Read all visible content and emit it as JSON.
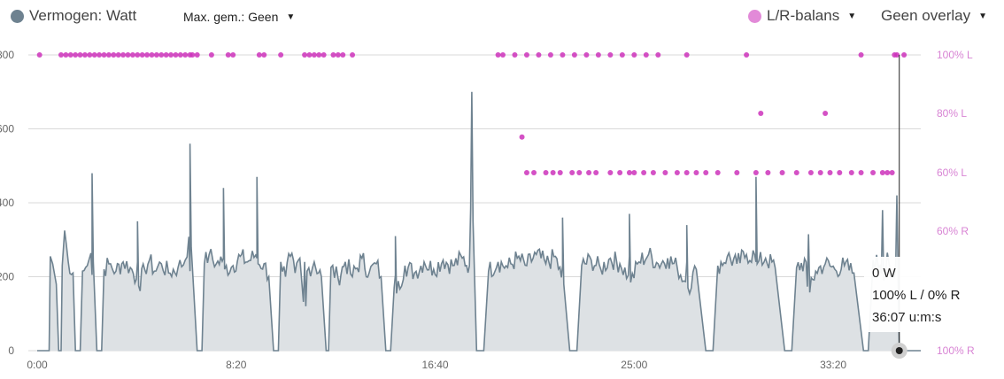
{
  "controls": {
    "power_legend": "Vermogen: Watt",
    "max_avg": "Max. gem.: Geen",
    "lr_legend": "L/R-balans",
    "overlay": "Geen overlay"
  },
  "colors": {
    "power_line": "#6e8290",
    "power_fill": "#dde1e4",
    "balance": "#cc33bb",
    "balance_label": "#d884d4",
    "grid": "#d9d9d9"
  },
  "tooltip": {
    "power": "0 W",
    "balance": "100% L  /  0% R",
    "time": "36:07 u:m:s"
  },
  "chart_data": {
    "type": "line",
    "x_unit": "minutes",
    "xlim": [
      0,
      37
    ],
    "x_ticks": [
      "0:00",
      "8:20",
      "16:40",
      "25:00",
      "33:20"
    ],
    "y_left_ticks": [
      "0",
      "200",
      "400",
      "600",
      "800"
    ],
    "ylim_left": [
      0,
      800
    ],
    "y_right_ticks": [
      "100% R",
      "60% R",
      "60% L",
      "80% L",
      "100% L"
    ],
    "grid": true,
    "series": [
      {
        "name": "Vermogen: Watt",
        "axis": "left",
        "points": [
          [
            0,
            0
          ],
          [
            0.5,
            0
          ],
          [
            0.55,
            255
          ],
          [
            0.65,
            235
          ],
          [
            0.8,
            180
          ],
          [
            0.9,
            0
          ],
          [
            1.0,
            0
          ],
          [
            1.05,
            230
          ],
          [
            1.15,
            325
          ],
          [
            1.3,
            240
          ],
          [
            1.5,
            210
          ],
          [
            1.6,
            0
          ],
          [
            1.8,
            0
          ],
          [
            1.9,
            215
          ],
          [
            2.1,
            230
          ],
          [
            2.3,
            205
          ],
          [
            2.5,
            0
          ],
          [
            2.7,
            0
          ],
          [
            2.8,
            220
          ],
          [
            3.0,
            235
          ],
          [
            3.3,
            215
          ],
          [
            3.6,
            240
          ],
          [
            3.9,
            225
          ],
          [
            4.2,
            240
          ],
          [
            4.5,
            220
          ],
          [
            4.7,
            245
          ],
          [
            4.9,
            215
          ],
          [
            5.2,
            235
          ],
          [
            5.5,
            210
          ],
          [
            5.9,
            225
          ],
          [
            6.2,
            245
          ],
          [
            6.4,
            215
          ],
          [
            6.7,
            0
          ],
          [
            6.9,
            0
          ],
          [
            7.0,
            235
          ],
          [
            7.2,
            260
          ],
          [
            7.5,
            235
          ],
          [
            7.8,
            250
          ],
          [
            8.2,
            230
          ],
          [
            8.5,
            255
          ],
          [
            8.8,
            240
          ],
          [
            9.2,
            250
          ],
          [
            9.5,
            235
          ],
          [
            9.7,
            200
          ],
          [
            9.9,
            0
          ],
          [
            10.1,
            0
          ],
          [
            10.2,
            240
          ],
          [
            10.4,
            200
          ],
          [
            10.6,
            255
          ],
          [
            10.8,
            210
          ],
          [
            11.0,
            250
          ],
          [
            11.3,
            215
          ],
          [
            11.6,
            240
          ],
          [
            11.9,
            200
          ],
          [
            12.1,
            0
          ],
          [
            12.2,
            0
          ],
          [
            12.3,
            225
          ],
          [
            12.6,
            195
          ],
          [
            12.9,
            240
          ],
          [
            13.2,
            200
          ],
          [
            13.6,
            250
          ],
          [
            13.9,
            210
          ],
          [
            14.2,
            235
          ],
          [
            14.4,
            200
          ],
          [
            14.6,
            0
          ],
          [
            14.8,
            0
          ],
          [
            15.0,
            205
          ],
          [
            15.4,
            230
          ],
          [
            15.8,
            210
          ],
          [
            16.2,
            240
          ],
          [
            16.6,
            220
          ],
          [
            17.0,
            245
          ],
          [
            17.4,
            230
          ],
          [
            17.8,
            250
          ],
          [
            18.1,
            230
          ],
          [
            18.4,
            0
          ],
          [
            18.7,
            0
          ],
          [
            18.9,
            215
          ],
          [
            19.3,
            240
          ],
          [
            19.7,
            225
          ],
          [
            20.1,
            250
          ],
          [
            20.5,
            230
          ],
          [
            20.9,
            260
          ],
          [
            21.3,
            235
          ],
          [
            21.7,
            255
          ],
          [
            22.0,
            230
          ],
          [
            22.3,
            0
          ],
          [
            22.6,
            0
          ],
          [
            22.8,
            230
          ],
          [
            23.2,
            245
          ],
          [
            23.6,
            220
          ],
          [
            24.0,
            250
          ],
          [
            24.4,
            235
          ],
          [
            24.8,
            255
          ],
          [
            25.2,
            240
          ],
          [
            25.6,
            260
          ],
          [
            26.0,
            235
          ],
          [
            26.4,
            250
          ],
          [
            26.8,
            225
          ],
          [
            27.2,
            240
          ],
          [
            27.6,
            220
          ],
          [
            28.0,
            0
          ],
          [
            28.3,
            0
          ],
          [
            28.5,
            230
          ],
          [
            28.9,
            255
          ],
          [
            29.3,
            235
          ],
          [
            29.7,
            260
          ],
          [
            30.1,
            240
          ],
          [
            30.5,
            250
          ],
          [
            30.9,
            225
          ],
          [
            31.3,
            0
          ],
          [
            31.6,
            0
          ],
          [
            31.8,
            225
          ],
          [
            32.2,
            240
          ],
          [
            32.6,
            215
          ],
          [
            33.0,
            235
          ],
          [
            33.4,
            220
          ],
          [
            33.8,
            230
          ],
          [
            34.2,
            210
          ],
          [
            34.6,
            0
          ],
          [
            34.8,
            0
          ],
          [
            35.0,
            245
          ],
          [
            35.3,
            230
          ],
          [
            35.6,
            265
          ],
          [
            35.9,
            200
          ],
          [
            36.1,
            0
          ],
          [
            37.0,
            0
          ]
        ],
        "spikes": [
          [
            2.3,
            480
          ],
          [
            4.2,
            350
          ],
          [
            6.4,
            560
          ],
          [
            7.8,
            440
          ],
          [
            9.2,
            470
          ],
          [
            11.2,
            240
          ],
          [
            15.0,
            310
          ],
          [
            18.2,
            700
          ],
          [
            22.0,
            360
          ],
          [
            24.8,
            370
          ],
          [
            27.2,
            340
          ],
          [
            30.1,
            470
          ],
          [
            32.3,
            315
          ],
          [
            35.4,
            380
          ],
          [
            36.0,
            420
          ]
        ]
      },
      {
        "name": "L/R-balans",
        "axis": "right",
        "points_pct_left": [
          [
            0.1,
            100
          ],
          [
            1.0,
            100
          ],
          [
            1.2,
            100
          ],
          [
            1.4,
            100
          ],
          [
            1.6,
            100
          ],
          [
            1.8,
            100
          ],
          [
            2.0,
            100
          ],
          [
            2.2,
            100
          ],
          [
            2.4,
            100
          ],
          [
            2.6,
            100
          ],
          [
            2.8,
            100
          ],
          [
            3.0,
            100
          ],
          [
            3.2,
            100
          ],
          [
            3.4,
            100
          ],
          [
            3.6,
            100
          ],
          [
            3.8,
            100
          ],
          [
            4.0,
            100
          ],
          [
            4.2,
            100
          ],
          [
            4.4,
            100
          ],
          [
            4.6,
            100
          ],
          [
            4.8,
            100
          ],
          [
            5.0,
            100
          ],
          [
            5.2,
            100
          ],
          [
            5.4,
            100
          ],
          [
            5.6,
            100
          ],
          [
            5.8,
            100
          ],
          [
            6.0,
            100
          ],
          [
            6.2,
            100
          ],
          [
            6.4,
            100
          ],
          [
            6.5,
            100
          ],
          [
            6.7,
            100
          ],
          [
            7.3,
            100
          ],
          [
            8.0,
            100
          ],
          [
            8.2,
            100
          ],
          [
            9.3,
            100
          ],
          [
            9.5,
            100
          ],
          [
            10.2,
            100
          ],
          [
            11.2,
            100
          ],
          [
            11.4,
            100
          ],
          [
            11.6,
            100
          ],
          [
            11.8,
            100
          ],
          [
            12.0,
            100
          ],
          [
            12.4,
            100
          ],
          [
            12.6,
            100
          ],
          [
            12.8,
            100
          ],
          [
            13.2,
            100
          ],
          [
            19.3,
            100
          ],
          [
            19.5,
            100
          ],
          [
            20.0,
            100
          ],
          [
            20.5,
            100
          ],
          [
            21.0,
            100
          ],
          [
            21.5,
            100
          ],
          [
            22.0,
            100
          ],
          [
            22.5,
            100
          ],
          [
            23.0,
            100
          ],
          [
            23.5,
            100
          ],
          [
            24.0,
            100
          ],
          [
            24.5,
            100
          ],
          [
            25.0,
            100
          ],
          [
            25.5,
            100
          ],
          [
            26.0,
            100
          ],
          [
            27.2,
            100
          ],
          [
            29.7,
            100
          ],
          [
            34.5,
            100
          ],
          [
            35.9,
            100
          ],
          [
            36.0,
            100
          ],
          [
            36.3,
            100
          ],
          [
            30.3,
            80
          ],
          [
            33.0,
            80
          ],
          [
            20.3,
            72
          ],
          [
            20.5,
            60
          ],
          [
            20.8,
            60
          ],
          [
            21.3,
            60
          ],
          [
            21.6,
            60
          ],
          [
            21.9,
            60
          ],
          [
            22.4,
            60
          ],
          [
            22.7,
            60
          ],
          [
            23.1,
            60
          ],
          [
            23.4,
            60
          ],
          [
            24.0,
            60
          ],
          [
            24.4,
            60
          ],
          [
            24.8,
            60
          ],
          [
            25.0,
            60
          ],
          [
            25.4,
            60
          ],
          [
            25.8,
            60
          ],
          [
            26.3,
            60
          ],
          [
            26.8,
            60
          ],
          [
            27.2,
            60
          ],
          [
            27.6,
            60
          ],
          [
            28.0,
            60
          ],
          [
            28.5,
            60
          ],
          [
            29.3,
            60
          ],
          [
            30.1,
            60
          ],
          [
            30.6,
            60
          ],
          [
            31.2,
            60
          ],
          [
            31.8,
            60
          ],
          [
            32.4,
            60
          ],
          [
            32.8,
            60
          ],
          [
            33.2,
            60
          ],
          [
            33.6,
            60
          ],
          [
            34.1,
            60
          ],
          [
            34.5,
            60
          ],
          [
            35.0,
            60
          ],
          [
            35.4,
            60
          ],
          [
            35.6,
            60
          ],
          [
            35.8,
            60
          ]
        ],
        "note_axis": "100% L at top, 100% R at bottom"
      }
    ]
  }
}
